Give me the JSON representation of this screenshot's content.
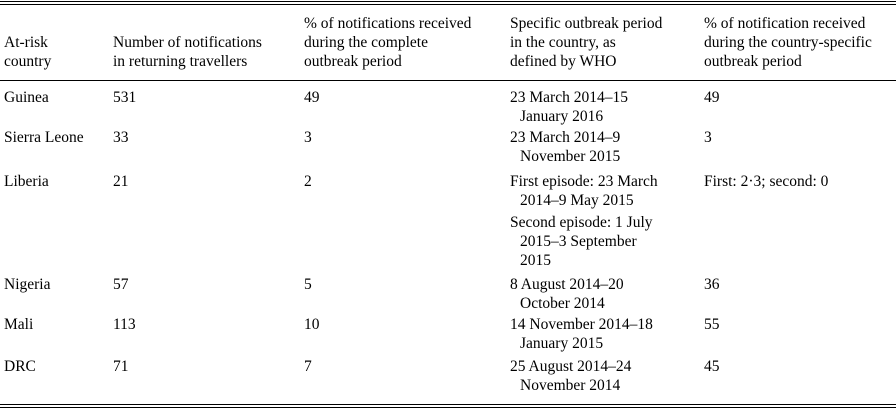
{
  "headers": [
    [
      "At-risk",
      "country"
    ],
    [
      "Number of notifications",
      "in returning travellers"
    ],
    [
      "% of notifications received",
      "during the complete",
      "outbreak period"
    ],
    [
      "Specific outbreak period",
      "in the country, as",
      "defined by WHO"
    ],
    [
      "% of notification received",
      "during the country-specific",
      "outbreak period"
    ]
  ],
  "rows": [
    {
      "country": "Guinea",
      "count": "531",
      "pct_complete": "49",
      "period": [
        "23 March 2014–15",
        "January 2016"
      ],
      "pct_specific": "49"
    },
    {
      "country": "Sierra Leone",
      "count": "33",
      "pct_complete": "3",
      "period": [
        "23 March 2014–9",
        "November 2015"
      ],
      "pct_specific": "3"
    },
    {
      "country": "Liberia",
      "count": "21",
      "pct_complete": "2",
      "period": [
        "First episode: 23 March",
        "2014–9 May 2015",
        "Second episode: 1 July",
        "2015–3 September",
        "2015"
      ],
      "pct_specific": "First: 2·3; second: 0"
    },
    {
      "country": "Nigeria",
      "count": "57",
      "pct_complete": "5",
      "period": [
        "8 August 2014–20",
        "October 2014"
      ],
      "pct_specific": "36"
    },
    {
      "country": "Mali",
      "count": "113",
      "pct_complete": "10",
      "period": [
        "14 November 2014–18",
        "January 2015"
      ],
      "pct_specific": "55"
    },
    {
      "country": "DRC",
      "count": "71",
      "pct_complete": "7",
      "period": [
        "25 August 2014–24",
        "November 2014"
      ],
      "pct_specific": "45"
    }
  ]
}
